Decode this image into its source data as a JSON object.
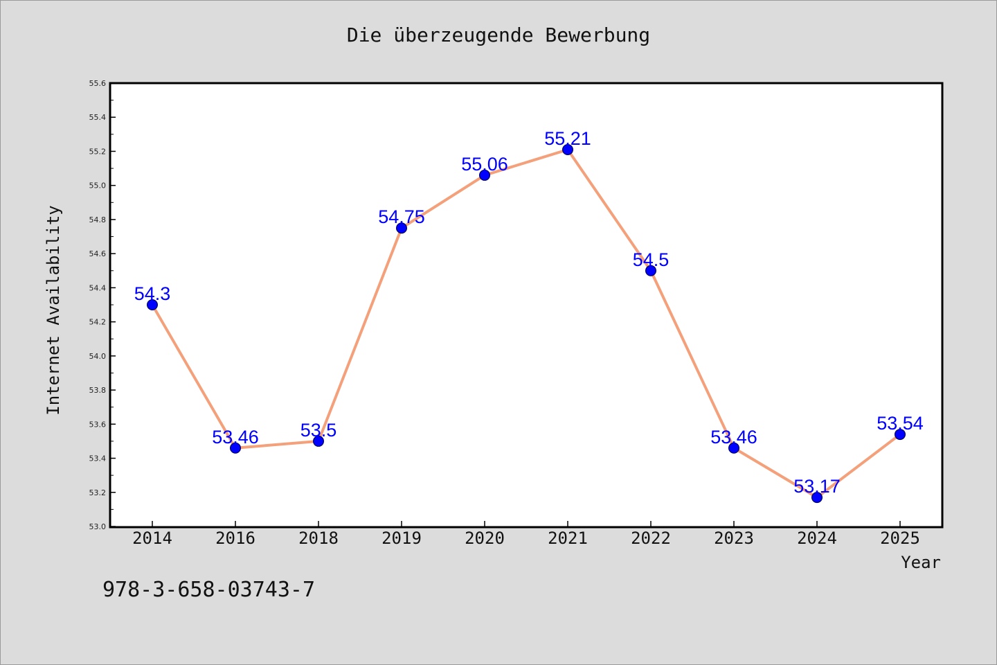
{
  "chart_data": {
    "type": "line",
    "title": "Die überzeugende Bewerbung",
    "xlabel": "Year",
    "ylabel": "Internet Availability",
    "categories": [
      "2014",
      "2016",
      "2018",
      "2019",
      "2020",
      "2021",
      "2022",
      "2023",
      "2024",
      "2025"
    ],
    "values": [
      54.3,
      53.46,
      53.5,
      54.75,
      55.06,
      55.21,
      54.5,
      53.46,
      53.17,
      53.54
    ],
    "data_labels": [
      "54.3",
      "53.46",
      "53.5",
      "54.75",
      "55.06",
      "55.21",
      "54.5",
      "53.46",
      "53.17",
      "53.54"
    ],
    "ylim": [
      53.0,
      55.6
    ],
    "yticks": [
      "53.0",
      "53.2",
      "53.4",
      "53.6",
      "53.8",
      "54.0",
      "54.2",
      "54.4",
      "54.6",
      "54.8",
      "55.0",
      "55.2",
      "55.4",
      "55.6"
    ],
    "grid": false,
    "line_color": "#f4a07a",
    "marker_color": "#0000ff",
    "label_color": "#0000ff"
  },
  "footer": {
    "isbn": "978-3-658-03743-7"
  }
}
